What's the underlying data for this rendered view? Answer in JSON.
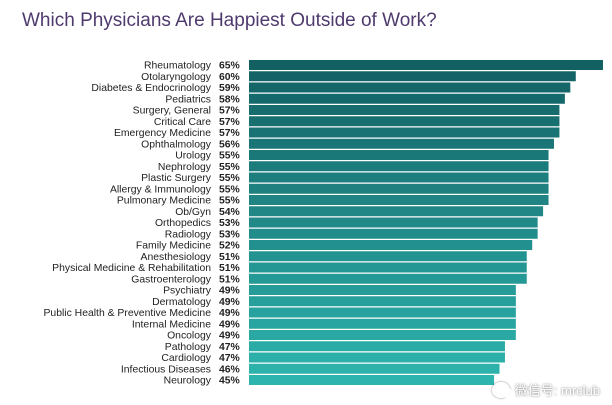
{
  "title": "Which Physicians Are Happiest Outside of Work?",
  "watermark": "微信号: mrclub",
  "colors": {
    "top": "#136063",
    "bottom": "#2eb4ae",
    "title": "#4f3a6e"
  },
  "chart_data": {
    "type": "bar",
    "orientation": "horizontal",
    "title": "Which Physicians Are Happiest Outside of Work?",
    "value_suffix": "%",
    "xlim": [
      0,
      65
    ],
    "grid": false,
    "categories": [
      "Rheumatology",
      "Otolaryngology",
      "Diabetes & Endocrinology",
      "Pediatrics",
      "Surgery, General",
      "Critical Care",
      "Emergency Medicine",
      "Ophthalmology",
      "Urology",
      "Nephrology",
      "Plastic Surgery",
      "Allergy & Immunology",
      "Pulmonary Medicine",
      "Ob/Gyn",
      "Orthopedics",
      "Radiology",
      "Family Medicine",
      "Anesthesiology",
      "Physical Medicine & Rehabilitation",
      "Gastroenterology",
      "Psychiatry",
      "Dermatology",
      "Public Health & Preventive Medicine",
      "Internal Medicine",
      "Oncology",
      "Pathology",
      "Cardiology",
      "Infectious Diseases",
      "Neurology"
    ],
    "values": [
      65,
      60,
      59,
      58,
      57,
      57,
      57,
      56,
      55,
      55,
      55,
      55,
      55,
      54,
      53,
      53,
      52,
      51,
      51,
      51,
      49,
      49,
      49,
      49,
      49,
      47,
      47,
      46,
      45
    ]
  }
}
